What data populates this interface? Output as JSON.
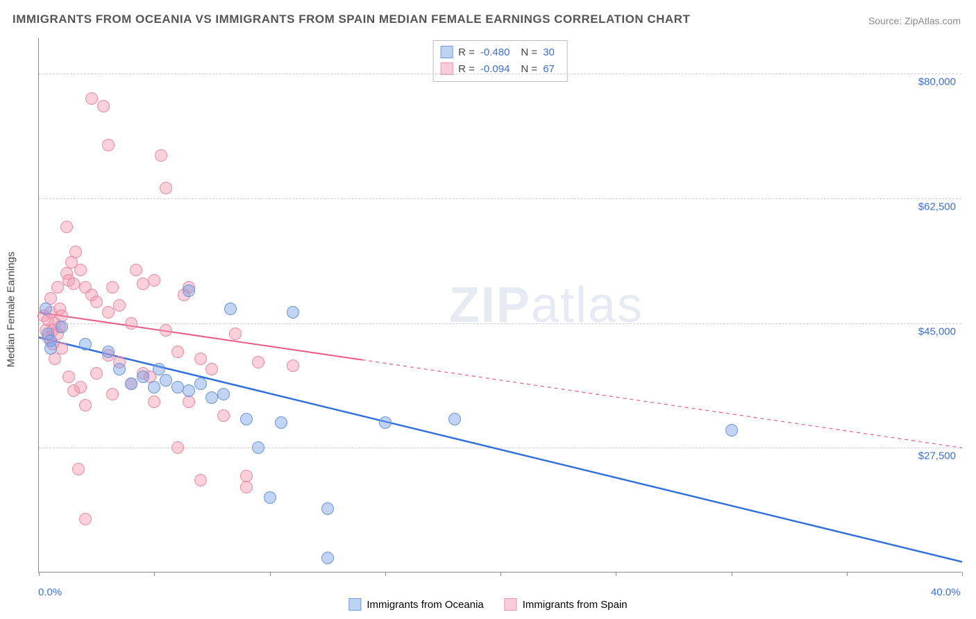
{
  "title": "IMMIGRANTS FROM OCEANIA VS IMMIGRANTS FROM SPAIN MEDIAN FEMALE EARNINGS CORRELATION CHART",
  "source_prefix": "Source: ",
  "source_name": "ZipAtlas.com",
  "watermark_a": "ZIP",
  "watermark_b": "atlas",
  "yaxis_title": "Median Female Earnings",
  "chart": {
    "type": "scatter-with-trendlines",
    "xlim": [
      0,
      40
    ],
    "ylim": [
      10000,
      85000
    ],
    "x_tick_step": 5,
    "x_min_label": "0.0%",
    "x_max_label": "40.0%",
    "y_gridlines": [
      27500,
      45000,
      62500,
      80000
    ],
    "y_tick_labels": [
      "$27,500",
      "$45,000",
      "$62,500",
      "$80,000"
    ],
    "background_color": "#ffffff",
    "grid_color": "#cccccc",
    "axis_color": "#888888",
    "tick_label_color": "#3b6fd6",
    "series": [
      {
        "id": "oceania",
        "label": "Immigrants from Oceania",
        "r_label": "R = ",
        "r_value": "-0.480",
        "n_label": "N = ",
        "n_value": "30",
        "marker_fill": "rgba(120,160,230,0.45)",
        "marker_stroke": "#6a95d8",
        "marker_radius": 9,
        "swatch_fill": "#bdd3f3",
        "swatch_border": "#6f99db",
        "line_color": "#2f6fe0",
        "line_width": 2.5,
        "trend": {
          "x1": 0,
          "y1": 43000,
          "x2": 40,
          "y2": 11500,
          "solid_until_x": 40
        },
        "points": [
          [
            0.3,
            47000
          ],
          [
            0.4,
            43500
          ],
          [
            0.5,
            42500
          ],
          [
            0.5,
            41500
          ],
          [
            1.0,
            44500
          ],
          [
            2.0,
            42000
          ],
          [
            3.0,
            41000
          ],
          [
            3.5,
            38500
          ],
          [
            4.0,
            36500
          ],
          [
            4.5,
            37500
          ],
          [
            5.0,
            36000
          ],
          [
            5.2,
            38500
          ],
          [
            5.5,
            37000
          ],
          [
            6.0,
            36000
          ],
          [
            6.5,
            35500
          ],
          [
            6.5,
            49500
          ],
          [
            7.0,
            36500
          ],
          [
            7.5,
            34500
          ],
          [
            8.0,
            35000
          ],
          [
            8.3,
            47000
          ],
          [
            9.0,
            31500
          ],
          [
            9.5,
            27500
          ],
          [
            10.0,
            20500
          ],
          [
            10.5,
            31000
          ],
          [
            11.0,
            46500
          ],
          [
            12.5,
            19000
          ],
          [
            12.5,
            12000
          ],
          [
            15.0,
            31000
          ],
          [
            18.0,
            31500
          ],
          [
            30.0,
            30000
          ]
        ]
      },
      {
        "id": "spain",
        "label": "Immigrants from Spain",
        "r_label": "R = ",
        "r_value": "-0.094",
        "n_label": "N = ",
        "n_value": "67",
        "marker_fill": "rgba(245,150,175,0.45)",
        "marker_stroke": "#e98aa5",
        "marker_radius": 9,
        "swatch_fill": "#f8cdd9",
        "swatch_border": "#eb95ac",
        "line_color": "#ea5b84",
        "line_width": 2,
        "trend": {
          "x1": 0,
          "y1": 46500,
          "x2": 40,
          "y2": 27500,
          "solid_until_x": 14
        },
        "points": [
          [
            0.2,
            46000
          ],
          [
            0.3,
            44000
          ],
          [
            0.4,
            45500
          ],
          [
            0.4,
            43000
          ],
          [
            0.5,
            46500
          ],
          [
            0.5,
            48500
          ],
          [
            0.6,
            44000
          ],
          [
            0.6,
            42000
          ],
          [
            0.7,
            45000
          ],
          [
            0.7,
            40000
          ],
          [
            0.8,
            43500
          ],
          [
            0.8,
            50000
          ],
          [
            0.9,
            44500
          ],
          [
            0.9,
            47000
          ],
          [
            1.0,
            46000
          ],
          [
            1.0,
            41500
          ],
          [
            1.2,
            58500
          ],
          [
            1.2,
            52000
          ],
          [
            1.3,
            51000
          ],
          [
            1.3,
            37500
          ],
          [
            1.4,
            53500
          ],
          [
            1.5,
            50500
          ],
          [
            1.5,
            35500
          ],
          [
            1.6,
            55000
          ],
          [
            1.7,
            24500
          ],
          [
            1.8,
            52500
          ],
          [
            1.8,
            36000
          ],
          [
            2.0,
            50000
          ],
          [
            2.0,
            33500
          ],
          [
            2.0,
            17500
          ],
          [
            2.3,
            49000
          ],
          [
            2.3,
            76500
          ],
          [
            2.5,
            48000
          ],
          [
            2.5,
            38000
          ],
          [
            2.8,
            75500
          ],
          [
            3.0,
            46500
          ],
          [
            3.0,
            40500
          ],
          [
            3.0,
            70000
          ],
          [
            3.2,
            35000
          ],
          [
            3.2,
            50000
          ],
          [
            3.5,
            39500
          ],
          [
            3.5,
            47500
          ],
          [
            4.0,
            45000
          ],
          [
            4.0,
            36500
          ],
          [
            4.2,
            52500
          ],
          [
            4.5,
            38000
          ],
          [
            4.5,
            50500
          ],
          [
            4.8,
            37500
          ],
          [
            5.0,
            34000
          ],
          [
            5.0,
            51000
          ],
          [
            5.3,
            68500
          ],
          [
            5.5,
            64000
          ],
          [
            5.5,
            44000
          ],
          [
            6.0,
            41000
          ],
          [
            6.0,
            27500
          ],
          [
            6.3,
            49000
          ],
          [
            6.5,
            34000
          ],
          [
            6.5,
            50000
          ],
          [
            7.0,
            40000
          ],
          [
            7.0,
            23000
          ],
          [
            7.5,
            38500
          ],
          [
            8.0,
            32000
          ],
          [
            8.5,
            43500
          ],
          [
            9.0,
            23500
          ],
          [
            9.0,
            22000
          ],
          [
            9.5,
            39500
          ],
          [
            11.0,
            39000
          ]
        ]
      }
    ]
  }
}
